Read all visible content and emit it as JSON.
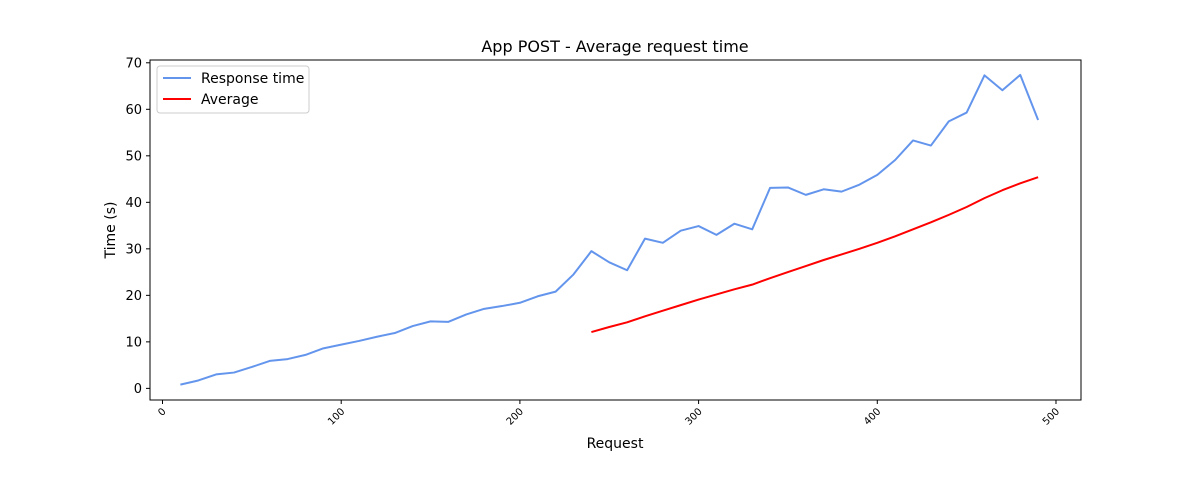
{
  "chart_data": {
    "type": "line",
    "title": "App POST - Average request time",
    "xlabel": "Request",
    "ylabel": "Time (s)",
    "xlim": [
      -7,
      514
    ],
    "ylim": [
      -2.5,
      70.6
    ],
    "xticks": [
      0,
      100,
      200,
      300,
      400,
      500
    ],
    "yticks": [
      0,
      10,
      20,
      30,
      40,
      50,
      60,
      70
    ],
    "grid": false,
    "legend_position": "upper-left",
    "series": [
      {
        "name": "Response time",
        "color": "#6495ed",
        "x": [
          10,
          20,
          30,
          40,
          50,
          60,
          70,
          80,
          90,
          100,
          110,
          120,
          130,
          140,
          150,
          160,
          170,
          180,
          190,
          200,
          210,
          220,
          230,
          240,
          250,
          260,
          270,
          280,
          290,
          300,
          310,
          320,
          330,
          340,
          350,
          360,
          370,
          380,
          390,
          400,
          410,
          420,
          430,
          440,
          450,
          460,
          470,
          480,
          490
        ],
        "y": [
          0.8,
          1.7,
          3.0,
          3.4,
          4.6,
          5.9,
          6.3,
          7.2,
          8.6,
          9.4,
          10.2,
          11.1,
          11.9,
          13.4,
          14.4,
          14.3,
          15.9,
          17.1,
          17.7,
          18.4,
          19.8,
          20.8,
          24.5,
          29.5,
          27.1,
          25.4,
          32.2,
          31.3,
          33.9,
          34.9,
          33.0,
          35.4,
          34.2,
          43.1,
          43.2,
          41.6,
          42.8,
          42.3,
          43.8,
          45.9,
          49.1,
          53.3,
          52.2,
          57.4,
          59.3,
          67.3,
          64.1,
          67.4,
          57.7
        ]
      },
      {
        "name": "Average",
        "color": "#ff0000",
        "x": [
          240,
          250,
          260,
          270,
          280,
          290,
          300,
          310,
          320,
          330,
          340,
          350,
          360,
          370,
          380,
          390,
          400,
          410,
          420,
          430,
          440,
          450,
          460,
          470,
          480,
          490
        ],
        "y": [
          12.1,
          13.2,
          14.2,
          15.5,
          16.7,
          17.9,
          19.1,
          20.2,
          21.3,
          22.3,
          23.7,
          25.0,
          26.3,
          27.6,
          28.8,
          30.0,
          31.3,
          32.7,
          34.2,
          35.7,
          37.3,
          39.0,
          40.9,
          42.6,
          44.1,
          45.4
        ]
      }
    ]
  }
}
